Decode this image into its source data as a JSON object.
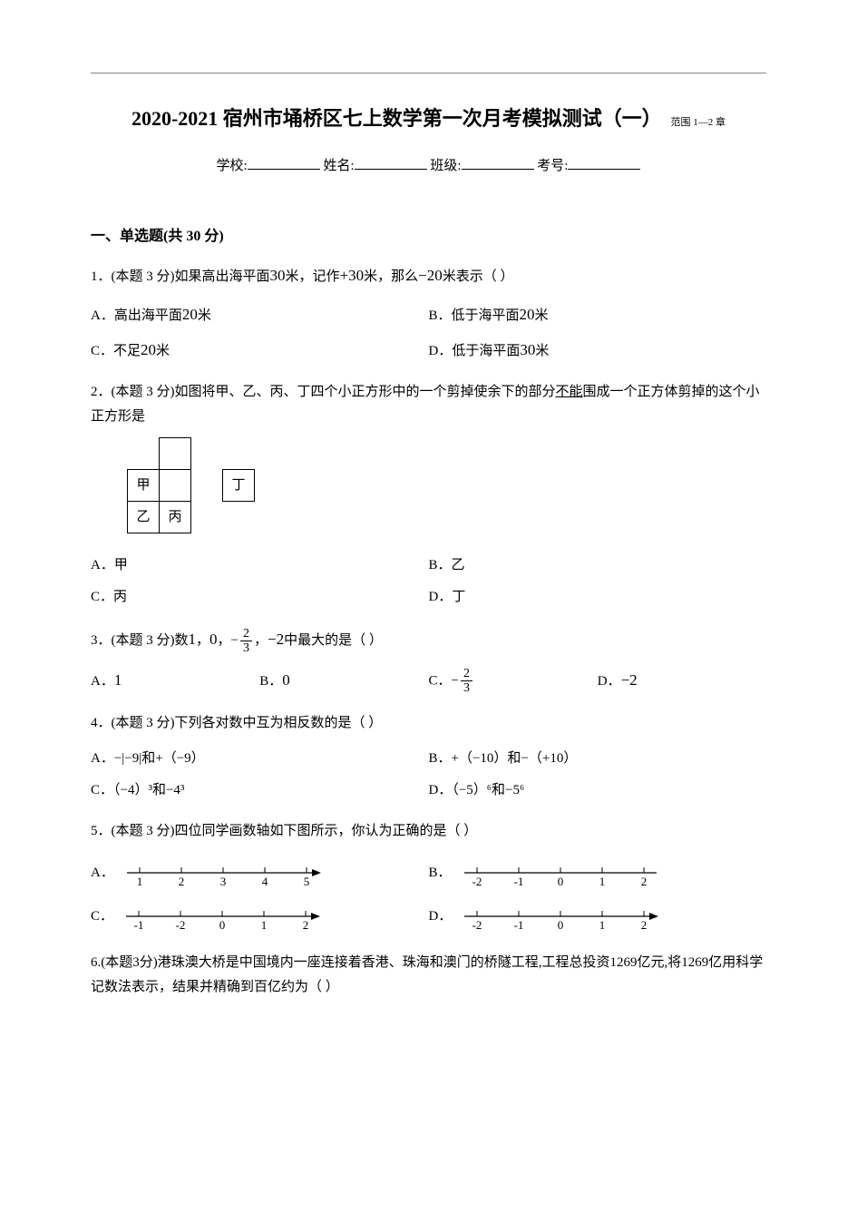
{
  "colors": {
    "text": "#000000",
    "bg": "#ffffff",
    "rule": "#888888"
  },
  "header": {
    "title": "2020-2021 宿州市埇桥区七上数学第一次月考模拟测试（一）",
    "scope": "范围 1—2 章",
    "info_labels": {
      "school": "学校:",
      "name": "姓名:",
      "class": "班级:",
      "exam_no": "考号:"
    }
  },
  "section1": {
    "heading": "一、单选题(共 30 分)"
  },
  "q1": {
    "stem_prefix": "1．(本题 3 分)如果高出海平面",
    "v1": "30",
    "stem_mid1": "米，记作",
    "v2": "+30",
    "stem_mid2": "米，那么",
    "v3": "−20",
    "stem_suffix": "米表示（    ）",
    "A_pre": "A．高出海平面",
    "A_val": "20",
    "A_post": "米",
    "B_pre": "B．低于海平面",
    "B_val": "20",
    "B_post": "米",
    "C_pre": "C．不足",
    "C_val": "20",
    "C_post": "米",
    "D_pre": "D．低于海平面",
    "D_val": "30",
    "D_post": "米"
  },
  "q2": {
    "stem_a": "2．(本题 3 分)如图将甲、乙、丙、丁四个小正方形中的一个剪掉使余下的部分",
    "stem_u": "不能",
    "stem_b": "围成一个正方体剪掉的这个小正方形是",
    "net": {
      "cell_size": 36,
      "labels": {
        "jia": "甲",
        "yi": "乙",
        "bing": "丙",
        "ding": "丁"
      }
    },
    "A": "A．甲",
    "B": "B．乙",
    "C": "C．丙",
    "D": "D．丁"
  },
  "q3": {
    "stem_a": "3．(本题 3 分)数",
    "v1": "1",
    "sep1": "，",
    "v2": "0",
    "sep2": "，",
    "frac_sign": "−",
    "frac_num": "2",
    "frac_den": "3",
    "sep3": "，",
    "v4": "−2",
    "stem_b": "中最大的是（    ）",
    "A": "A．",
    "A_val": "1",
    "B": "B．",
    "B_val": "0",
    "C": "C．",
    "D": "D．",
    "D_val": "−2"
  },
  "q4": {
    "stem": "4．(本题 3 分)下列各对数中互为相反数的是（     ）",
    "A": "A．−|−9|和+（−9）",
    "B": "B．+（−10）和−（+10）",
    "C": "C．（−4）³和−4³",
    "D": "D．（−5）⁶和−5⁶"
  },
  "q5": {
    "stem": "5．(本题 3 分)四位同学画数轴如下图所示，你认为正确的是（     ）",
    "lines": {
      "length": 220,
      "height": 36,
      "y": 18,
      "tick_h": 6,
      "label_y": 32,
      "font_size": 13,
      "A": {
        "ticks": [
          1,
          2,
          3,
          4,
          5
        ],
        "arrow_left": false,
        "arrow_right": true
      },
      "B": {
        "ticks": [
          -2,
          -1,
          0,
          1,
          2
        ],
        "arrow_left": false,
        "arrow_right": false
      },
      "C": {
        "ticks": [
          -1,
          -2,
          0,
          1,
          2
        ],
        "arrow_left": false,
        "arrow_right": true
      },
      "D": {
        "ticks": [
          -2,
          -1,
          0,
          1,
          2
        ],
        "arrow_left": false,
        "arrow_right": true
      }
    },
    "labels": {
      "A": "A．",
      "B": "B．",
      "C": "C．",
      "D": "D．"
    }
  },
  "q6": {
    "stem": "6.(本题3分)港珠澳大桥是中国境内一座连接着香港、珠海和澳门的桥隧工程,工程总投资1269亿元,将1269亿用科学记数法表示，结果并精确到百亿约为（   ）"
  }
}
